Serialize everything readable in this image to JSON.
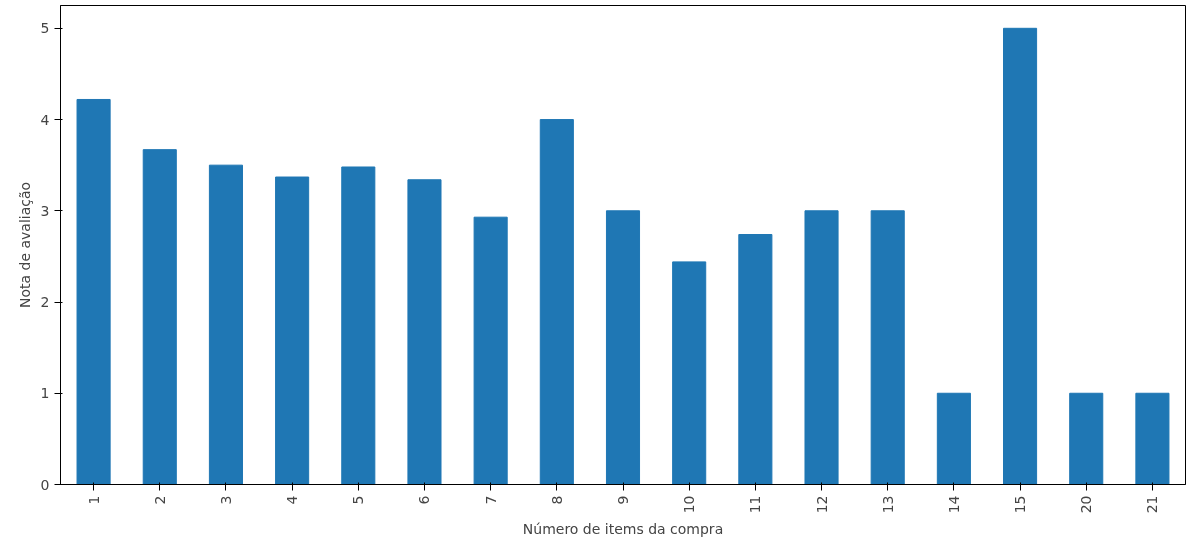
{
  "chart_data": {
    "type": "bar",
    "xlabel": "Número de items da compra",
    "ylabel": "Nota de avaliação",
    "categories": [
      "1",
      "2",
      "3",
      "4",
      "5",
      "6",
      "7",
      "8",
      "9",
      "10",
      "11",
      "12",
      "13",
      "14",
      "15",
      "20",
      "21"
    ],
    "values": [
      4.22,
      3.67,
      3.5,
      3.37,
      3.48,
      3.34,
      2.93,
      4.0,
      3.0,
      2.44,
      2.74,
      3.0,
      3.0,
      1.0,
      5.0,
      1.0,
      1.0
    ],
    "color": "#1f77b4",
    "ylim": [
      0,
      5.25
    ],
    "yticks": [
      0,
      1,
      2,
      3,
      4,
      5
    ],
    "grid": false
  }
}
